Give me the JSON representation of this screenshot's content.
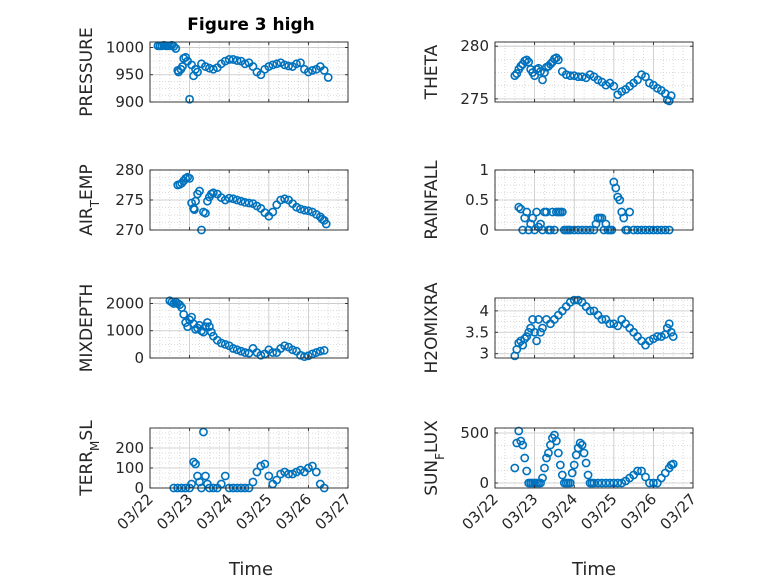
{
  "figure": {
    "title": "Figure 3 high",
    "xlabel": "Time",
    "marker_color": "#0072BD",
    "xticks": [
      "03/22",
      "03/23",
      "03/24",
      "03/25",
      "03/26",
      "03/27"
    ]
  },
  "chart_data": [
    {
      "type": "scatter",
      "ylabel": "PRESSURE",
      "ylim": [
        900,
        1010
      ],
      "yticks": [
        900,
        950,
        1000
      ],
      "xlim": [
        0,
        5
      ],
      "grid": true,
      "series": [
        {
          "x": [
            0.2,
            0.25,
            0.3,
            0.35,
            0.4,
            0.45,
            0.5,
            0.55,
            0.6,
            0.65,
            0.7,
            0.72,
            0.78,
            0.82,
            0.85,
            0.9,
            0.95,
            1.0,
            1.05,
            1.1,
            1.15,
            1.2,
            1.3,
            1.4,
            1.5,
            1.6,
            1.7,
            1.8,
            1.9,
            2.0,
            2.1,
            2.2,
            2.3,
            2.4,
            2.5,
            2.6,
            2.7,
            2.8,
            2.9,
            3.0,
            3.1,
            3.2,
            3.3,
            3.4,
            3.5,
            3.6,
            3.7,
            3.8,
            3.9,
            4.0,
            4.1,
            4.2,
            4.3,
            4.4,
            4.5
          ],
          "y": [
            1003,
            1003,
            1003,
            1004,
            1003,
            1003,
            1003,
            1004,
            1002,
            998,
            958,
            955,
            960,
            965,
            980,
            982,
            975,
            905,
            968,
            948,
            960,
            955,
            970,
            965,
            962,
            960,
            963,
            970,
            975,
            978,
            978,
            976,
            975,
            970,
            972,
            965,
            955,
            950,
            960,
            965,
            968,
            970,
            972,
            968,
            966,
            965,
            970,
            972,
            960,
            955,
            958,
            960,
            965,
            958,
            945
          ]
        }
      ]
    },
    {
      "type": "scatter",
      "ylabel": "THETA",
      "ylim": [
        274.7,
        280.4
      ],
      "yticks": [
        275,
        280
      ],
      "xlim": [
        0,
        5
      ],
      "grid": true,
      "series": [
        {
          "x": [
            0.5,
            0.55,
            0.6,
            0.65,
            0.7,
            0.75,
            0.8,
            0.85,
            0.9,
            0.95,
            1.0,
            1.05,
            1.1,
            1.15,
            1.2,
            1.25,
            1.3,
            1.35,
            1.4,
            1.45,
            1.5,
            1.55,
            1.6,
            1.7,
            1.8,
            1.9,
            2.0,
            2.1,
            2.2,
            2.3,
            2.4,
            2.5,
            2.6,
            2.7,
            2.8,
            2.9,
            3.0,
            3.1,
            3.2,
            3.3,
            3.4,
            3.5,
            3.6,
            3.7,
            3.8,
            3.9,
            4.0,
            4.1,
            4.2,
            4.3,
            4.35,
            4.4,
            4.45
          ],
          "y": [
            277.2,
            277.4,
            277.8,
            278.1,
            278.3,
            278.6,
            278.7,
            278.5,
            277.8,
            277.5,
            277.2,
            277.8,
            277.9,
            277.6,
            276.8,
            277.5,
            278.0,
            278.1,
            278.3,
            278.5,
            278.8,
            278.9,
            278.7,
            277.6,
            277.3,
            277.2,
            277.2,
            277.1,
            277.1,
            277.0,
            277.3,
            277.1,
            276.8,
            276.6,
            276.3,
            276.5,
            276.2,
            275.4,
            275.7,
            275.9,
            276.2,
            276.5,
            276.8,
            277.3,
            277.1,
            276.5,
            276.3,
            276.0,
            275.8,
            275.5,
            274.9,
            274.8,
            275.3
          ]
        }
      ]
    },
    {
      "type": "scatter",
      "ylabel": "AIR_TEMP",
      "ylim": [
        270,
        280
      ],
      "yticks": [
        270,
        275,
        280
      ],
      "xlim": [
        0,
        5
      ],
      "grid": true,
      "series": [
        {
          "x": [
            0.7,
            0.75,
            0.8,
            0.85,
            0.9,
            0.95,
            1.0,
            1.05,
            1.1,
            1.12,
            1.15,
            1.2,
            1.25,
            1.3,
            1.35,
            1.4,
            1.45,
            1.5,
            1.55,
            1.6,
            1.7,
            1.8,
            1.9,
            2.0,
            2.1,
            2.2,
            2.3,
            2.4,
            2.5,
            2.6,
            2.7,
            2.8,
            2.9,
            3.0,
            3.1,
            3.2,
            3.3,
            3.4,
            3.5,
            3.6,
            3.7,
            3.8,
            3.9,
            4.0,
            4.1,
            4.2,
            4.3,
            4.35,
            4.4,
            4.45
          ],
          "y": [
            277.5,
            277.6,
            277.8,
            278.2,
            278.6,
            278.8,
            278.6,
            274.5,
            273.6,
            273.4,
            274.8,
            276.0,
            276.5,
            270.0,
            273.0,
            272.8,
            274.8,
            275.5,
            276.0,
            276.2,
            276.0,
            275.4,
            275.0,
            275.3,
            275.2,
            275.0,
            274.8,
            274.6,
            274.5,
            274.4,
            274.0,
            273.6,
            272.9,
            272.3,
            273.0,
            274.2,
            275.0,
            275.2,
            275.0,
            274.4,
            273.8,
            273.5,
            273.3,
            273.2,
            273.0,
            272.6,
            272.2,
            271.8,
            271.6,
            271.0
          ]
        }
      ]
    },
    {
      "type": "scatter",
      "ylabel": "RAINFALL",
      "ylim": [
        0,
        1
      ],
      "yticks": [
        0,
        0.5,
        1
      ],
      "xlim": [
        0,
        5
      ],
      "grid": true,
      "series": [
        {
          "x": [
            0.6,
            0.65,
            0.7,
            0.75,
            0.8,
            0.85,
            0.9,
            0.95,
            1.0,
            1.05,
            1.1,
            1.15,
            1.2,
            1.25,
            1.3,
            1.35,
            1.4,
            1.45,
            1.5,
            1.55,
            1.6,
            1.65,
            1.7,
            1.75,
            1.8,
            1.85,
            1.9,
            2.0,
            2.1,
            2.2,
            2.3,
            2.4,
            2.5,
            2.55,
            2.6,
            2.65,
            2.7,
            2.75,
            2.8,
            2.85,
            2.9,
            2.95,
            3.0,
            3.05,
            3.1,
            3.15,
            3.2,
            3.25,
            3.3,
            3.35,
            3.4,
            3.5,
            3.6,
            3.7,
            3.8,
            3.9,
            4.0,
            4.1,
            4.2,
            4.3,
            4.4
          ],
          "y": [
            0.38,
            0.35,
            0.0,
            0.2,
            0.3,
            0.0,
            0.1,
            0.2,
            0.0,
            0.3,
            0.05,
            0.1,
            0.0,
            0.3,
            0.3,
            0.0,
            0.0,
            0.3,
            0.0,
            0.3,
            0.3,
            0.3,
            0.3,
            0.0,
            0.0,
            0.0,
            0.0,
            0.0,
            0.0,
            0.0,
            0.0,
            0.0,
            0.0,
            0.1,
            0.2,
            0.2,
            0.2,
            0.0,
            0.1,
            0.0,
            0.0,
            0.0,
            0.8,
            0.7,
            0.55,
            0.5,
            0.3,
            0.2,
            0.0,
            0.0,
            0.3,
            0.0,
            0.0,
            0.0,
            0.0,
            0.0,
            0.0,
            0.0,
            0.0,
            0.0,
            0.0
          ]
        }
      ]
    },
    {
      "type": "scatter",
      "ylabel": "MIXDEPTH",
      "ylim": [
        0,
        2200
      ],
      "yticks": [
        0,
        1000,
        2000
      ],
      "xlim": [
        0,
        5
      ],
      "grid": true,
      "series": [
        {
          "x": [
            0.5,
            0.55,
            0.6,
            0.65,
            0.7,
            0.75,
            0.8,
            0.85,
            0.9,
            0.95,
            1.0,
            1.05,
            1.1,
            1.15,
            1.2,
            1.25,
            1.3,
            1.35,
            1.4,
            1.45,
            1.5,
            1.55,
            1.6,
            1.7,
            1.8,
            1.9,
            2.0,
            2.1,
            2.2,
            2.3,
            2.4,
            2.5,
            2.6,
            2.7,
            2.8,
            2.9,
            3.0,
            3.1,
            3.2,
            3.3,
            3.4,
            3.5,
            3.6,
            3.7,
            3.8,
            3.9,
            4.0,
            4.1,
            4.2,
            4.3,
            4.4
          ],
          "y": [
            2100,
            2050,
            2000,
            2050,
            2000,
            1950,
            1850,
            1600,
            1300,
            1150,
            1400,
            1500,
            1250,
            1050,
            1100,
            1200,
            1000,
            950,
            1150,
            1300,
            1150,
            950,
            800,
            650,
            550,
            500,
            450,
            350,
            300,
            250,
            200,
            180,
            350,
            200,
            100,
            150,
            300,
            200,
            200,
            350,
            450,
            400,
            300,
            250,
            100,
            50,
            80,
            150,
            200,
            250,
            280
          ]
        }
      ]
    },
    {
      "type": "scatter",
      "ylabel": "H2OMIXRA",
      "ylim": [
        2.9,
        4.3
      ],
      "yticks": [
        3,
        3.5,
        4
      ],
      "xlim": [
        0,
        5
      ],
      "grid": true,
      "series": [
        {
          "x": [
            0.5,
            0.55,
            0.6,
            0.65,
            0.7,
            0.75,
            0.8,
            0.85,
            0.9,
            0.95,
            1.0,
            1.05,
            1.1,
            1.15,
            1.2,
            1.3,
            1.4,
            1.5,
            1.6,
            1.7,
            1.8,
            1.9,
            2.0,
            2.1,
            2.2,
            2.3,
            2.4,
            2.5,
            2.6,
            2.7,
            2.8,
            2.9,
            3.0,
            3.1,
            3.2,
            3.3,
            3.4,
            3.5,
            3.6,
            3.7,
            3.8,
            3.9,
            4.0,
            4.1,
            4.2,
            4.3,
            4.35,
            4.4,
            4.45,
            4.5
          ],
          "y": [
            2.95,
            3.1,
            3.25,
            3.3,
            3.2,
            3.35,
            3.4,
            3.5,
            3.6,
            3.8,
            3.5,
            3.3,
            3.8,
            3.5,
            3.6,
            3.8,
            3.7,
            3.8,
            3.9,
            4.0,
            4.1,
            4.2,
            4.25,
            4.25,
            4.2,
            4.1,
            4.0,
            4.0,
            3.9,
            3.8,
            3.8,
            3.7,
            3.7,
            3.65,
            3.8,
            3.7,
            3.6,
            3.5,
            3.4,
            3.3,
            3.2,
            3.3,
            3.35,
            3.4,
            3.4,
            3.45,
            3.6,
            3.7,
            3.5,
            3.4
          ]
        }
      ]
    },
    {
      "type": "scatter",
      "ylabel": "TERR_MSL",
      "ylim": [
        0,
        300
      ],
      "yticks": [
        0,
        100,
        200
      ],
      "xlim": [
        0,
        5
      ],
      "grid": true,
      "series": [
        {
          "x": [
            0.6,
            0.7,
            0.8,
            0.9,
            1.0,
            1.05,
            1.1,
            1.15,
            1.2,
            1.25,
            1.3,
            1.35,
            1.4,
            1.45,
            1.5,
            1.6,
            1.7,
            1.8,
            1.9,
            2.0,
            2.1,
            2.2,
            2.3,
            2.4,
            2.5,
            2.6,
            2.7,
            2.8,
            2.9,
            3.0,
            3.1,
            3.2,
            3.3,
            3.4,
            3.5,
            3.6,
            3.7,
            3.8,
            3.9,
            4.0,
            4.1,
            4.2,
            4.3,
            4.4
          ],
          "y": [
            0,
            0,
            0,
            0,
            0,
            20,
            130,
            120,
            60,
            30,
            0,
            280,
            60,
            20,
            0,
            0,
            0,
            20,
            60,
            0,
            0,
            0,
            0,
            0,
            0,
            30,
            80,
            110,
            120,
            60,
            20,
            40,
            70,
            80,
            70,
            70,
            80,
            90,
            80,
            100,
            110,
            80,
            20,
            0
          ]
        }
      ]
    },
    {
      "type": "scatter",
      "ylabel": "SUN_FLUX",
      "ylim": [
        -50,
        550
      ],
      "yticks": [
        0,
        500
      ],
      "xlim": [
        0,
        5
      ],
      "grid": true,
      "series": [
        {
          "x": [
            0.5,
            0.55,
            0.6,
            0.65,
            0.7,
            0.75,
            0.8,
            0.85,
            0.9,
            0.95,
            1.0,
            1.05,
            1.1,
            1.15,
            1.2,
            1.25,
            1.3,
            1.35,
            1.4,
            1.45,
            1.5,
            1.55,
            1.6,
            1.65,
            1.7,
            1.75,
            1.8,
            1.85,
            1.9,
            1.95,
            2.0,
            2.05,
            2.1,
            2.15,
            2.2,
            2.25,
            2.3,
            2.35,
            2.4,
            2.45,
            2.5,
            2.6,
            2.7,
            2.8,
            2.9,
            3.0,
            3.1,
            3.2,
            3.3,
            3.4,
            3.5,
            3.6,
            3.7,
            3.8,
            3.9,
            4.0,
            4.1,
            4.2,
            4.3,
            4.4,
            4.45,
            4.5
          ],
          "y": [
            150,
            400,
            520,
            420,
            380,
            250,
            120,
            0,
            0,
            0,
            0,
            0,
            0,
            0,
            50,
            150,
            250,
            300,
            380,
            450,
            480,
            420,
            300,
            180,
            80,
            0,
            0,
            0,
            0,
            100,
            180,
            280,
            350,
            400,
            380,
            300,
            200,
            80,
            0,
            0,
            0,
            0,
            0,
            0,
            0,
            0,
            0,
            0,
            20,
            50,
            80,
            120,
            120,
            60,
            0,
            0,
            0,
            50,
            100,
            150,
            180,
            190
          ]
        }
      ]
    }
  ]
}
